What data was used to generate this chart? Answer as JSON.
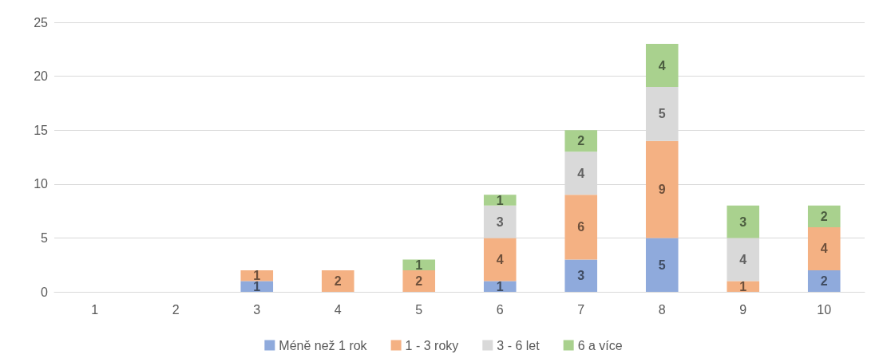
{
  "chart_data": {
    "type": "bar",
    "stacked": true,
    "categories": [
      "1",
      "2",
      "3",
      "4",
      "5",
      "6",
      "7",
      "8",
      "9",
      "10"
    ],
    "series": [
      {
        "name": "Méně než 1 rok",
        "color": "#8faadc",
        "values": [
          null,
          null,
          1,
          null,
          null,
          1,
          3,
          5,
          null,
          2
        ]
      },
      {
        "name": "1 - 3 roky",
        "color": "#f4b183",
        "values": [
          null,
          null,
          1,
          2,
          2,
          4,
          6,
          9,
          1,
          4
        ]
      },
      {
        "name": "3 - 6 let",
        "color": "#d9d9d9",
        "values": [
          null,
          null,
          null,
          null,
          null,
          3,
          4,
          5,
          4,
          null
        ]
      },
      {
        "name": "6 a více",
        "color": "#a9d18e",
        "values": [
          null,
          null,
          null,
          null,
          1,
          1,
          2,
          4,
          3,
          2
        ]
      }
    ],
    "ylim": [
      0,
      25
    ],
    "yticks": [
      0,
      5,
      10,
      15,
      20,
      25
    ],
    "grid": "y",
    "legend": "bottom",
    "data_labels": true
  }
}
